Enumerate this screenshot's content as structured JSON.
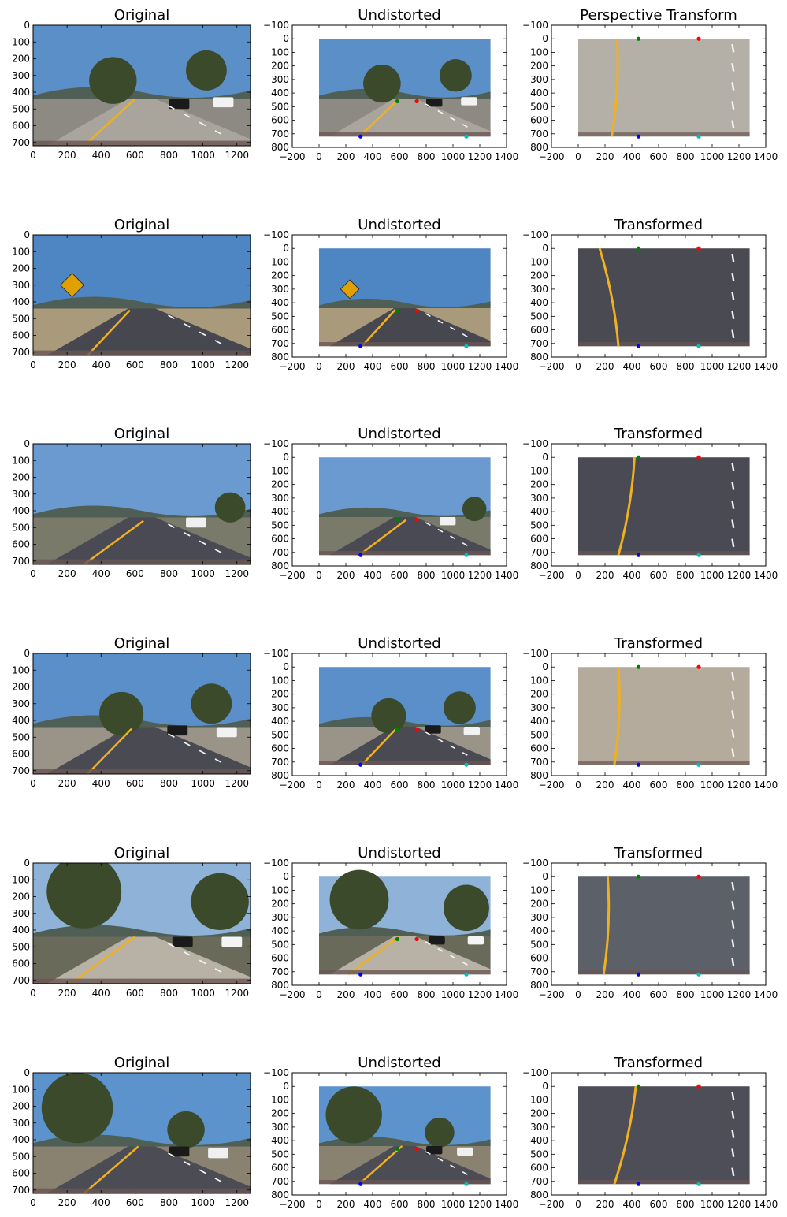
{
  "figure": {
    "rows": [
      {
        "titles": [
          "Original",
          "Undistorted",
          "Perspective Transform"
        ],
        "scene": {
          "sky": "#5b8fc7",
          "road": "#a9a49c",
          "ground": "#8c8a82",
          "warp": "#b4b0a8",
          "trees": [
            [
              470,
              330,
              140
            ],
            [
              1020,
              270,
              120
            ]
          ],
          "cars": [
            [
              860,
              440,
              "#1a1a1a"
            ],
            [
              1120,
              430,
              "#f2f2f2"
            ]
          ],
          "yellowline": [
            [
              300,
              720
            ],
            [
              600,
              440
            ]
          ],
          "warplane": [
            [
              250,
              720
            ],
            [
              290,
              0
            ]
          ]
        }
      },
      {
        "titles": [
          "Original",
          "Undistorted",
          "Transformed"
        ],
        "scene": {
          "sky": "#4e86c4",
          "road": "#47474f",
          "ground": "#a89a7a",
          "warp": "#4a4a52",
          "trees": [],
          "cars": [],
          "sign": [
            230,
            300
          ],
          "yellowline": [
            [
              320,
              720
            ],
            [
              570,
              450
            ]
          ],
          "warplane": [
            [
              300,
              720
            ],
            [
              160,
              0
            ]
          ]
        }
      },
      {
        "titles": [
          "Original",
          "Undistorted",
          "Transformed"
        ],
        "scene": {
          "sky": "#6a9ad0",
          "road": "#4a4a55",
          "ground": "#7a7a6a",
          "warp": "#4a4a54",
          "trees": [
            [
              1160,
              380,
              90
            ]
          ],
          "cars": [
            [
              960,
              440,
              "#f0f0f0"
            ]
          ],
          "yellowline": [
            [
              300,
              720
            ],
            [
              650,
              460
            ]
          ],
          "warplane": [
            [
              300,
              720
            ],
            [
              420,
              0
            ]
          ]
        }
      },
      {
        "titles": [
          "Original",
          "Undistorted",
          "Transformed"
        ],
        "scene": {
          "sky": "#5a8fc9",
          "road": "#4a4a52",
          "ground": "#9a9388",
          "warp": "#b5ab9c",
          "trees": [
            [
              520,
              360,
              130
            ],
            [
              1050,
              300,
              120
            ]
          ],
          "cars": [
            [
              850,
              430,
              "#1a1a1a"
            ],
            [
              1140,
              440,
              "#f2f2f2"
            ]
          ],
          "yellowline": [
            [
              320,
              720
            ],
            [
              580,
              450
            ]
          ],
          "warplane": [
            [
              270,
              720
            ],
            [
              300,
              0
            ]
          ]
        }
      },
      {
        "titles": [
          "Original",
          "Undistorted",
          "Transformed"
        ],
        "scene": {
          "sky": "#8fb3d8",
          "road": "#b8b2a6",
          "ground": "#6a6a5a",
          "warp": "#5c6068",
          "trees": [
            [
              300,
              170,
              220
            ],
            [
              1100,
              230,
              170
            ]
          ],
          "cars": [
            [
              880,
              440,
              "#1a1a1a"
            ],
            [
              1170,
              440,
              "#f4f4f4"
            ]
          ],
          "yellowline": [
            [
              220,
              720
            ],
            [
              600,
              440
            ]
          ],
          "warplane": [
            [
              190,
              720
            ],
            [
              220,
              0
            ]
          ]
        }
      },
      {
        "titles": [
          "Original",
          "Undistorted",
          "Transformed"
        ],
        "scene": {
          "sky": "#5d93cc",
          "road": "#4c4c55",
          "ground": "#8a8270",
          "warp": "#4e4e58",
          "trees": [
            [
              260,
              210,
              210
            ],
            [
              900,
              340,
              110
            ]
          ],
          "cars": [
            [
              860,
              440,
              "#1a1a1a"
            ],
            [
              1090,
              450,
              "#f0f0f0"
            ]
          ],
          "yellowline": [
            [
              300,
              720
            ],
            [
              620,
              440
            ]
          ],
          "warplane": [
            [
              270,
              720
            ],
            [
              430,
              0
            ]
          ]
        }
      }
    ],
    "original_axes": {
      "xlim": [
        0,
        1280
      ],
      "ylim": [
        720,
        0
      ],
      "xticks": [
        0,
        200,
        400,
        600,
        800,
        1000,
        1200
      ],
      "xticklabels": [
        "0",
        "200",
        "400",
        "600",
        "800",
        "1000",
        "1200"
      ],
      "yticks": [
        0,
        100,
        200,
        300,
        400,
        500,
        600,
        700
      ],
      "yticklabels": [
        "0",
        "100",
        "200",
        "300",
        "400",
        "500",
        "600",
        "700"
      ]
    },
    "points_axes": {
      "xlim": [
        -200,
        1400
      ],
      "ylim": [
        800,
        -100
      ],
      "xticks": [
        -200,
        0,
        200,
        400,
        600,
        800,
        1000,
        1200,
        1400
      ],
      "xticklabels": [
        "−200",
        "0",
        "200",
        "400",
        "600",
        "800",
        "1000",
        "1200",
        "1400"
      ],
      "yticks": [
        -100,
        0,
        100,
        200,
        300,
        400,
        500,
        600,
        700,
        800
      ],
      "yticklabels": [
        "−100",
        "0",
        "100",
        "200",
        "300",
        "400",
        "500",
        "600",
        "700",
        "800"
      ]
    },
    "undistorted_points": [
      {
        "x": 585,
        "y": 460,
        "color": "#008000"
      },
      {
        "x": 730,
        "y": 460,
        "color": "#ff0000"
      },
      {
        "x": 310,
        "y": 720,
        "color": "#0000ff"
      },
      {
        "x": 1100,
        "y": 720,
        "color": "#00bfbf"
      }
    ],
    "transformed_points": [
      {
        "x": 450,
        "y": 0,
        "color": "#008000"
      },
      {
        "x": 900,
        "y": 0,
        "color": "#ff0000"
      },
      {
        "x": 450,
        "y": 720,
        "color": "#0000ff"
      },
      {
        "x": 900,
        "y": 720,
        "color": "#00bfbf"
      }
    ]
  }
}
